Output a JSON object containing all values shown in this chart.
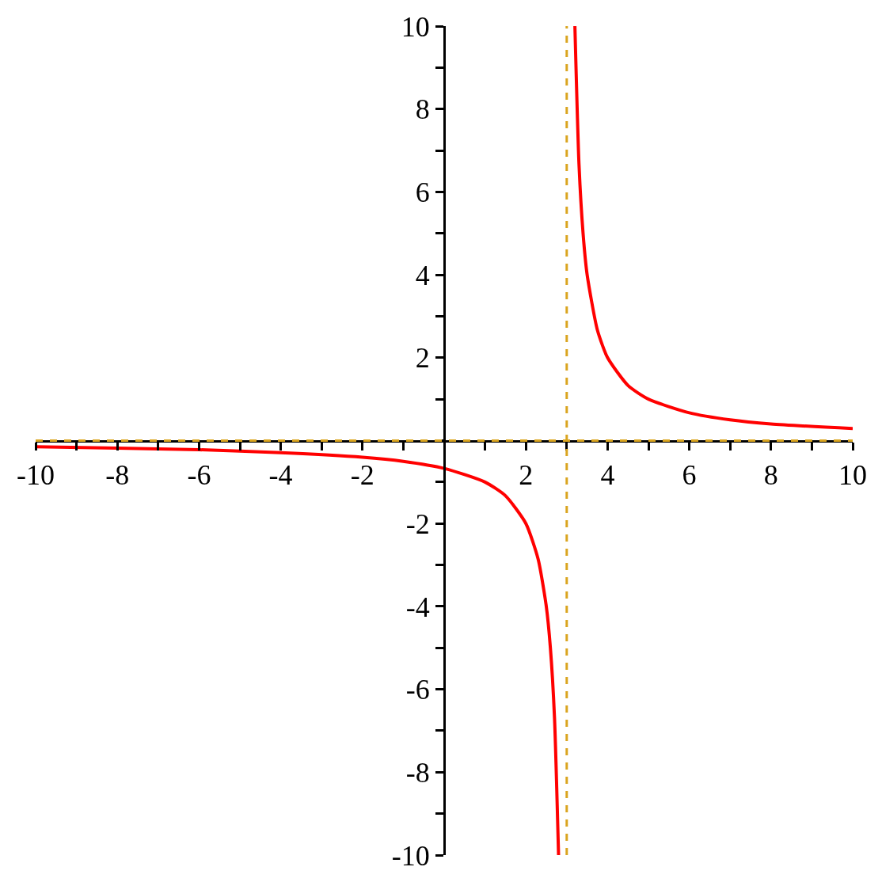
{
  "chart_data": {
    "type": "line",
    "x": [
      -10,
      -8,
      -6,
      -4,
      -2,
      -1,
      0,
      1,
      1.5,
      2,
      2.3,
      2.5,
      2.6,
      2.7,
      2.8,
      null,
      3.2,
      3.3,
      3.4,
      3.5,
      3.75,
      4,
      4.5,
      5,
      6,
      7,
      8,
      10
    ],
    "series": [
      {
        "color": "#ff0000",
        "values": [
          -0.15,
          -0.18,
          -0.22,
          -0.29,
          -0.4,
          -0.5,
          -0.67,
          -1,
          -1.33,
          -2,
          -2.86,
          -4,
          -5,
          -6.67,
          -10,
          null,
          10,
          6.67,
          5,
          4,
          2.67,
          2,
          1.33,
          1,
          0.67,
          0.5,
          0.4,
          0.29
        ]
      }
    ],
    "xlim": [
      -10,
      10
    ],
    "ylim": [
      -10,
      10
    ],
    "xticks": [
      -10,
      {
        "value": -9,
        "label": null
      },
      -8,
      {
        "value": -7,
        "label": null
      },
      -6,
      {
        "value": -5,
        "label": null
      },
      -4,
      {
        "value": -3,
        "label": null
      },
      -2,
      {
        "value": -1,
        "label": null
      },
      {
        "value": 0,
        "label": null
      },
      {
        "value": 1,
        "label": null
      },
      2,
      {
        "value": 3,
        "label": null
      },
      4,
      {
        "value": 5,
        "label": null
      },
      6,
      {
        "value": 7,
        "label": null
      },
      8,
      {
        "value": 9,
        "label": null
      },
      10
    ],
    "yticks": [
      -10,
      {
        "value": -9,
        "label": null
      },
      -8,
      {
        "value": -7,
        "label": null
      },
      -6,
      {
        "value": -5,
        "label": null
      },
      -4,
      {
        "value": -3,
        "label": null
      },
      -2,
      {
        "value": -1,
        "label": null
      },
      {
        "value": 0,
        "label": null
      },
      {
        "value": 1,
        "label": null
      },
      2,
      {
        "value": 3,
        "label": null
      },
      4,
      {
        "value": 5,
        "label": null
      },
      6,
      {
        "value": 7,
        "label": null
      },
      8,
      {
        "value": 9,
        "label": null
      },
      10
    ],
    "ref_lines": [
      {
        "axis": "x",
        "value": 3,
        "color": "#daa520",
        "line_style": "dashed"
      },
      {
        "axis": "y",
        "value": 0,
        "color": "#daa520",
        "line_style": "dashed"
      }
    ],
    "legend": false,
    "marker": "none",
    "line_style": "solid"
  }
}
